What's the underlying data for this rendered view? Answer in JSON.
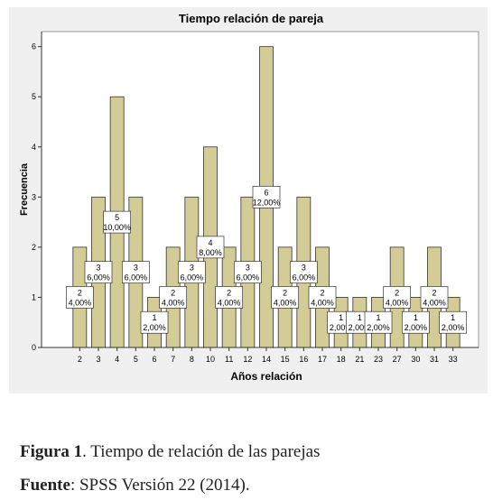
{
  "chart_data": {
    "type": "bar",
    "title": "Tiempo  relación de pareja",
    "x_label": "Años relación",
    "y_label": "Frecuencia",
    "categories": [
      "2",
      "3",
      "4",
      "5",
      "6",
      "7",
      "8",
      "10",
      "11",
      "12",
      "14",
      "15",
      "16",
      "17",
      "18",
      "21",
      "23",
      "27",
      "30",
      "31",
      "33"
    ],
    "values": [
      2,
      3,
      5,
      3,
      1,
      2,
      3,
      4,
      2,
      3,
      6,
      2,
      3,
      2,
      1,
      1,
      1,
      2,
      1,
      2,
      1
    ],
    "percent_labels": [
      "4,00%",
      "6,00%",
      "10,00%",
      "6,00%",
      "2,00%",
      "4,00%",
      "6,00%",
      "8,00%",
      "4,00%",
      "6,00%",
      "12,00%",
      "4,00%",
      "6,00%",
      "4,00%",
      "2,00%",
      "2,00%",
      "2,00%",
      "4,00%",
      "2,00%",
      "4,00%",
      "2,00%"
    ],
    "color": "#d4cc96",
    "ylim": [
      0,
      6.3
    ],
    "yticks": [
      0,
      1,
      2,
      3,
      4,
      5,
      6
    ],
    "grid": false
  },
  "figure_caption": {
    "label": "Figura 1",
    "text": ". Tiempo de relación de las parejas"
  },
  "source": {
    "label": "Fuente",
    "text": ": SPSS Versión 22 (2014)."
  }
}
